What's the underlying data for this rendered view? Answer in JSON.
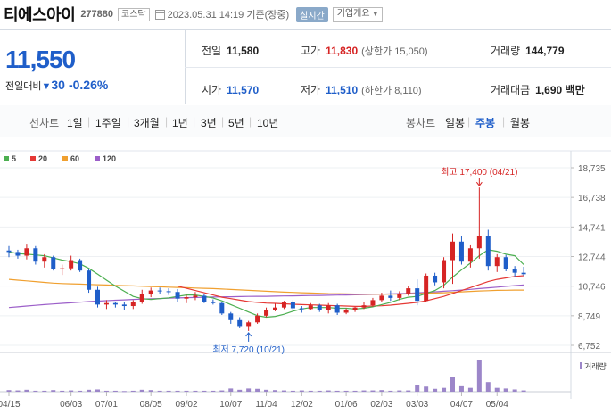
{
  "header": {
    "name": "티에스아이",
    "code": "277880",
    "market": "코스닥",
    "datetime": "2023.05.31 14:19 기준(장중)",
    "realtime_label": "실시간",
    "info_label": "기업개요"
  },
  "price": {
    "current": "11,550",
    "change_label": "전일대비",
    "change_value": "30",
    "change_percent": "-0.26%"
  },
  "stats": {
    "prev_label": "전일",
    "prev": "11,580",
    "high_label": "고가",
    "high": "11,830",
    "upper_limit": "(상한가 15,050)",
    "volume_label": "거래량",
    "volume": "144,779",
    "open_label": "시가",
    "open": "11,570",
    "low_label": "저가",
    "low": "11,510",
    "lower_limit": "(하한가 8,110)",
    "amount_label": "거래대금",
    "amount": "1,690",
    "amount_unit": "백만"
  },
  "periods": {
    "line_label": "선차트",
    "line_items": [
      "1일",
      "1주일",
      "3개월",
      "1년",
      "3년",
      "5년",
      "10년"
    ],
    "candle_label": "봉차트",
    "candle_items": [
      "일봉",
      "주봉",
      "월봉"
    ],
    "selected": "주봉"
  },
  "colors": {
    "up": "#d62424",
    "down": "#1f5ec9",
    "ma5": "#4caf50",
    "ma20": "#e53935",
    "ma60": "#f0a030",
    "ma120": "#9c5fc9"
  },
  "chart_data": {
    "type": "candlestick",
    "legend": [
      {
        "name": "5",
        "color": "#4caf50"
      },
      {
        "name": "20",
        "color": "#e53935"
      },
      {
        "name": "60",
        "color": "#f0a030"
      },
      {
        "name": "120",
        "color": "#9c5fc9"
      }
    ],
    "y_ticks": [
      "18,735",
      "16,738",
      "14,741",
      "12,744",
      "10,746",
      "8,749",
      "6,752"
    ],
    "y_tick_values": [
      18735,
      16738,
      14741,
      12744,
      10746,
      8749,
      6752
    ],
    "x_ticks": [
      "04/15",
      "06/03",
      "07/01",
      "08/05",
      "09/02",
      "10/07",
      "11/04",
      "12/02",
      "01/06",
      "02/03",
      "03/03",
      "04/07",
      "05/04"
    ],
    "x_tick_index": [
      0,
      7,
      11,
      16,
      20,
      25,
      29,
      33,
      38,
      42,
      46,
      51,
      55
    ],
    "volume_label": "거래량",
    "high_annotation": "최고 17,400 (04/21)",
    "low_annotation": "최저 7,720 (10/21)",
    "high_index": 53,
    "low_index": 27,
    "candles": [
      [
        13150,
        13450,
        12700,
        13050
      ],
      [
        13050,
        13200,
        12600,
        12800
      ],
      [
        12800,
        13550,
        12550,
        13300
      ],
      [
        13300,
        13450,
        12200,
        12400
      ],
      [
        12400,
        12900,
        12000,
        12700
      ],
      [
        12700,
        12800,
        11800,
        11900
      ],
      [
        11900,
        12200,
        11500,
        11950
      ],
      [
        11950,
        12800,
        11800,
        12500
      ],
      [
        12500,
        12600,
        11700,
        11800
      ],
      [
        11800,
        11900,
        10300,
        10500
      ],
      [
        10500,
        10700,
        9300,
        9500
      ],
      [
        9500,
        9800,
        9200,
        9600
      ],
      [
        9600,
        9700,
        9300,
        9500
      ],
      [
        9500,
        9650,
        9100,
        9400
      ],
      [
        9400,
        9800,
        9200,
        9650
      ],
      [
        9650,
        10500,
        9550,
        10200
      ],
      [
        10200,
        10650,
        10000,
        10450
      ],
      [
        10450,
        10650,
        10200,
        10400
      ],
      [
        10400,
        10600,
        10150,
        10350
      ],
      [
        10350,
        10550,
        9700,
        9900
      ],
      [
        9900,
        10150,
        9600,
        10000
      ],
      [
        10000,
        10350,
        9800,
        10100
      ],
      [
        10100,
        10250,
        9600,
        9700
      ],
      [
        9700,
        9850,
        9500,
        9600
      ],
      [
        9600,
        9700,
        8800,
        8900
      ],
      [
        8900,
        9000,
        8200,
        8450
      ],
      [
        8450,
        8650,
        7900,
        8050
      ],
      [
        8050,
        8400,
        7720,
        8300
      ],
      [
        8300,
        8900,
        8200,
        8750
      ],
      [
        8750,
        9300,
        8650,
        9150
      ],
      [
        9150,
        9550,
        9050,
        9300
      ],
      [
        9300,
        9750,
        9200,
        9650
      ],
      [
        9650,
        9800,
        9100,
        9250
      ],
      [
        9250,
        9400,
        8950,
        9200
      ],
      [
        9200,
        9600,
        9100,
        9450
      ],
      [
        9450,
        9550,
        9000,
        9150
      ],
      [
        9150,
        9600,
        8900,
        9450
      ],
      [
        9450,
        9550,
        8800,
        8950
      ],
      [
        8950,
        9250,
        8850,
        9150
      ],
      [
        9150,
        9350,
        9000,
        9300
      ],
      [
        9300,
        9650,
        9200,
        9450
      ],
      [
        9450,
        9950,
        9350,
        9800
      ],
      [
        9800,
        10300,
        9650,
        10100
      ],
      [
        10100,
        10450,
        9750,
        9950
      ],
      [
        9950,
        10400,
        9800,
        10250
      ],
      [
        10250,
        10750,
        10100,
        10600
      ],
      [
        10600,
        11200,
        9450,
        9750
      ],
      [
        9750,
        11600,
        9650,
        11450
      ],
      [
        11450,
        11650,
        10800,
        11000
      ],
      [
        11000,
        12700,
        10600,
        12500
      ],
      [
        12500,
        14300,
        10900,
        13750
      ],
      [
        13750,
        14100,
        12200,
        12400
      ],
      [
        12400,
        13500,
        12000,
        13300
      ],
      [
        13300,
        17400,
        12600,
        14100
      ],
      [
        14100,
        14550,
        11800,
        12100
      ],
      [
        12100,
        12900,
        11700,
        12700
      ],
      [
        12700,
        12850,
        11750,
        11900
      ],
      [
        11900,
        12100,
        11400,
        11650
      ],
      [
        11650,
        12050,
        11450,
        11550
      ]
    ],
    "ma5": [
      13050,
      12950,
      12900,
      12850,
      12800,
      12650,
      12500,
      12400,
      12250,
      11950,
      11550,
      11150,
      10750,
      10400,
      10050,
      9900,
      9850,
      9900,
      9950,
      10050,
      10150,
      10150,
      10050,
      9950,
      9750,
      9500,
      9250,
      9000,
      8750,
      8650,
      8700,
      8850,
      9050,
      9200,
      9300,
      9300,
      9300,
      9250,
      9250,
      9200,
      9250,
      9350,
      9500,
      9650,
      9850,
      10000,
      10050,
      10250,
      10450,
      10800,
      11350,
      11850,
      12300,
      12800,
      13200,
      13100,
      12900,
      12800,
      12200
    ],
    "ma20": [
      null,
      null,
      null,
      null,
      null,
      null,
      null,
      null,
      null,
      null,
      null,
      null,
      null,
      null,
      null,
      null,
      null,
      null,
      null,
      10750,
      10600,
      10450,
      10300,
      10150,
      10000,
      9900,
      9800,
      9700,
      9650,
      9600,
      9580,
      9550,
      9520,
      9500,
      9480,
      9460,
      9440,
      9420,
      9400,
      9380,
      9380,
      9400,
      9420,
      9460,
      9520,
      9580,
      9650,
      9750,
      9900,
      10050,
      10250,
      10450,
      10650,
      10850,
      11050,
      11200,
      11300,
      11400,
      11450
    ],
    "ma60": [
      11200,
      11150,
      11100,
      11050,
      11000,
      10950,
      10920,
      10900,
      10880,
      10860,
      10840,
      10820,
      10800,
      10780,
      10760,
      10740,
      10720,
      10700,
      10680,
      10660,
      10640,
      10620,
      10600,
      10580,
      10550,
      10520,
      10490,
      10460,
      10430,
      10400,
      10370,
      10340,
      10320,
      10300,
      10280,
      10260,
      10240,
      10230,
      10220,
      10210,
      10200,
      10200,
      10200,
      10200,
      10210,
      10220,
      10240,
      10260,
      10280,
      10300,
      10330,
      10360,
      10390,
      10420,
      10440,
      10460,
      10470,
      10480,
      10480
    ],
    "ma120": [
      9300,
      9350,
      9400,
      9450,
      9500,
      9540,
      9580,
      9620,
      9660,
      9700,
      9730,
      9760,
      9790,
      9820,
      9850,
      9870,
      9890,
      9910,
      9930,
      9950,
      9965,
      9980,
      9995,
      10010,
      10020,
      10030,
      10040,
      10050,
      10055,
      10060,
      10070,
      10080,
      10090,
      10100,
      10110,
      10120,
      10130,
      10140,
      10150,
      10160,
      10175,
      10190,
      10205,
      10220,
      10240,
      10260,
      10290,
      10320,
      10360,
      10400,
      10440,
      10480,
      10530,
      10580,
      10630,
      10680,
      10730,
      10780,
      10830
    ],
    "volume": [
      0.05,
      0.04,
      0.06,
      0.03,
      0.03,
      0.05,
      0.03,
      0.04,
      0.03,
      0.06,
      0.07,
      0.03,
      0.03,
      0.02,
      0.03,
      0.06,
      0.05,
      0.03,
      0.03,
      0.03,
      0.03,
      0.03,
      0.03,
      0.03,
      0.04,
      0.1,
      0.06,
      0.1,
      0.09,
      0.06,
      0.05,
      0.04,
      0.03,
      0.04,
      0.03,
      0.03,
      0.04,
      0.03,
      0.03,
      0.03,
      0.04,
      0.04,
      0.05,
      0.03,
      0.04,
      0.04,
      0.2,
      0.16,
      0.09,
      0.12,
      0.45,
      0.17,
      0.12,
      1.0,
      0.3,
      0.12,
      0.1,
      0.07,
      0.04
    ]
  }
}
